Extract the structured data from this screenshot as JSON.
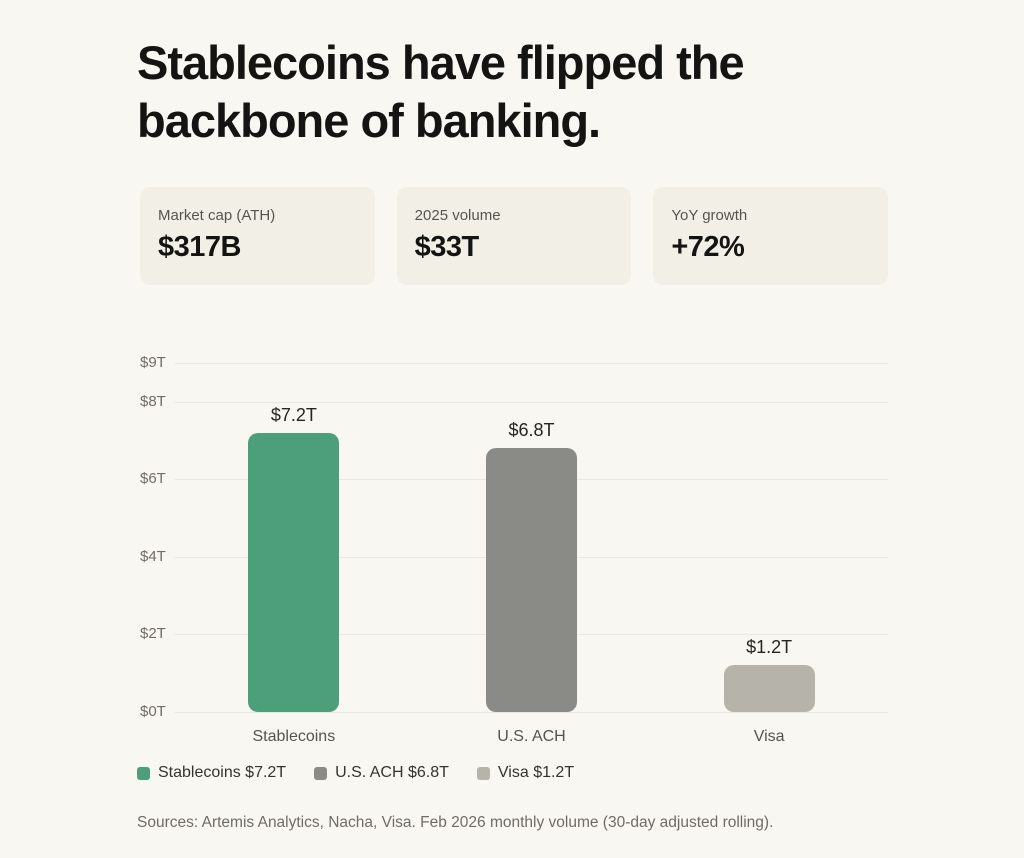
{
  "page": {
    "title": "Stablecoins have flipped the backbone of banking."
  },
  "stats": [
    {
      "label": "Market cap (ATH)",
      "value": "$317B"
    },
    {
      "label": "2025 volume",
      "value": "$33T"
    },
    {
      "label": "YoY growth",
      "value": "+72%"
    }
  ],
  "chart_data": {
    "type": "bar",
    "categories": [
      "Stablecoins",
      "U.S. ACH",
      "Visa"
    ],
    "values": [
      7.2,
      6.8,
      1.2
    ],
    "value_labels": [
      "$7.2T",
      "$6.8T",
      "$1.2T"
    ],
    "bar_colors": [
      "#4d9f7c",
      "#8a8a86",
      "#b5b3aa"
    ],
    "title": "",
    "xlabel": "",
    "ylabel": "",
    "ylim": [
      0,
      9
    ],
    "yticks": [
      0,
      2,
      4,
      6,
      8,
      9
    ],
    "ytick_labels": [
      "$0T",
      "$2T",
      "$4T",
      "$6T",
      "$8T",
      "$9T"
    ],
    "grid": true,
    "legend_position": "bottom-left",
    "legend": [
      {
        "label": "Stablecoins $7.2T",
        "color": "#4d9f7c"
      },
      {
        "label": "U.S. ACH $6.8T",
        "color": "#8a8a86"
      },
      {
        "label": "Visa $1.2T",
        "color": "#b5b3aa"
      }
    ]
  },
  "footer": {
    "sources": "Sources: Artemis Analytics, Nacha, Visa. Feb 2026 monthly volume (30-day adjusted rolling)."
  },
  "colors": {
    "page_bg": "#f9f7f1",
    "card_bg": "#f2f0e6",
    "accent_green": "#4d9f7c",
    "gray_dark": "#8a8a86",
    "gray_light": "#b5b3aa",
    "text_dark": "#141412",
    "text_muted": "#56544e",
    "gridline": "#e9e7df"
  }
}
